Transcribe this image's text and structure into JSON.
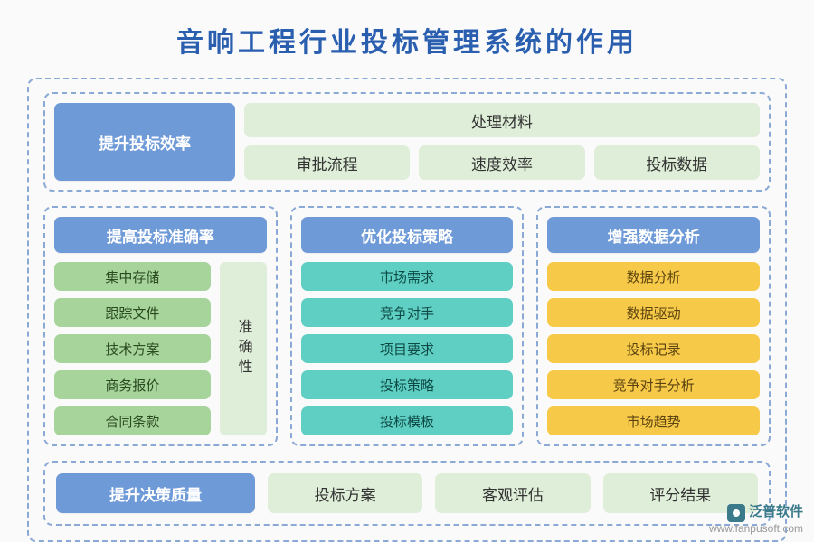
{
  "title": "音响工程行业投标管理系统的作用",
  "colors": {
    "header_bg": "#6f9ad8",
    "header_text": "#ffffff",
    "green_bg": "#a6d49a",
    "lightgreen_bg": "#dfeed8",
    "teal_bg": "#5fcfc4",
    "yellow_bg": "#f7c948",
    "border_dash": "#8aa9d4",
    "page_bg": "#fafafb",
    "title_color": "#2a5fb0"
  },
  "section1": {
    "header": "提升投标效率",
    "row1": "处理材料",
    "row2": [
      "审批流程",
      "速度效率",
      "投标数据"
    ]
  },
  "columns": [
    {
      "header": "提高投标准确率",
      "items": [
        "集中存储",
        "跟踪文件",
        "技术方案",
        "商务报价",
        "合同条款"
      ],
      "side_label": "准确性",
      "item_style": "green",
      "side_style": "lightgreen"
    },
    {
      "header": "优化投标策略",
      "items": [
        "市场需求",
        "竞争对手",
        "项目要求",
        "投标策略",
        "投标模板"
      ],
      "item_style": "teal"
    },
    {
      "header": "增强数据分析",
      "items": [
        "数据分析",
        "数据驱动",
        "投标记录",
        "竞争对手分析",
        "市场趋势"
      ],
      "item_style": "yellow"
    }
  ],
  "section3": {
    "header": "提升决策质量",
    "items": [
      "投标方案",
      "客观评估",
      "评分结果"
    ]
  },
  "footer": {
    "brand": "泛普软件",
    "url": "www.fanpusoft.com"
  }
}
